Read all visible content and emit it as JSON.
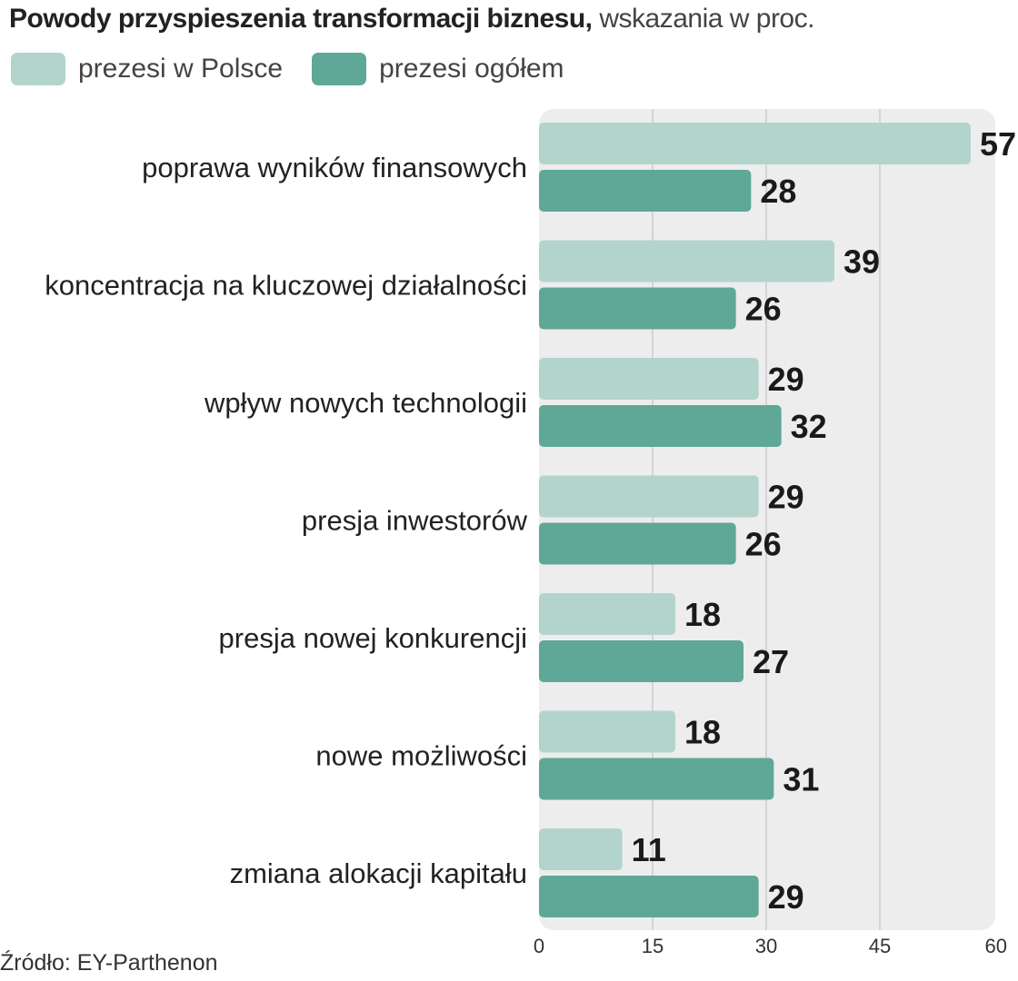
{
  "title_bold": "Powody przyspieszenia transformacji biznesu,",
  "title_rest": " wskazania w proc.",
  "source": "Źródło: EY-Parthenon",
  "colors": {
    "poland": "#b3d4cc",
    "overall": "#5fa898",
    "panel": "#ededed",
    "grid": "#d4d4d4"
  },
  "chart_data": {
    "type": "bar",
    "orientation": "horizontal",
    "title": "Powody przyspieszenia transformacji biznesu, wskazania w proc.",
    "categories": [
      "poprawa wyników finansowych",
      "koncentracja na kluczowej działalności",
      "wpływ nowych technologii",
      "presja inwestorów",
      "presja nowej konkurencji",
      "nowe możliwości",
      "zmiana alokacji kapitału"
    ],
    "series": [
      {
        "name": "prezesi w Polsce",
        "values": [
          57,
          39,
          29,
          29,
          18,
          18,
          11
        ]
      },
      {
        "name": "prezesi ogółem",
        "values": [
          28,
          26,
          32,
          26,
          27,
          31,
          29
        ]
      }
    ],
    "xlim": [
      0,
      60
    ],
    "xticks": [
      0,
      15,
      30,
      45,
      60
    ],
    "grid": true,
    "legend": "top-left"
  }
}
